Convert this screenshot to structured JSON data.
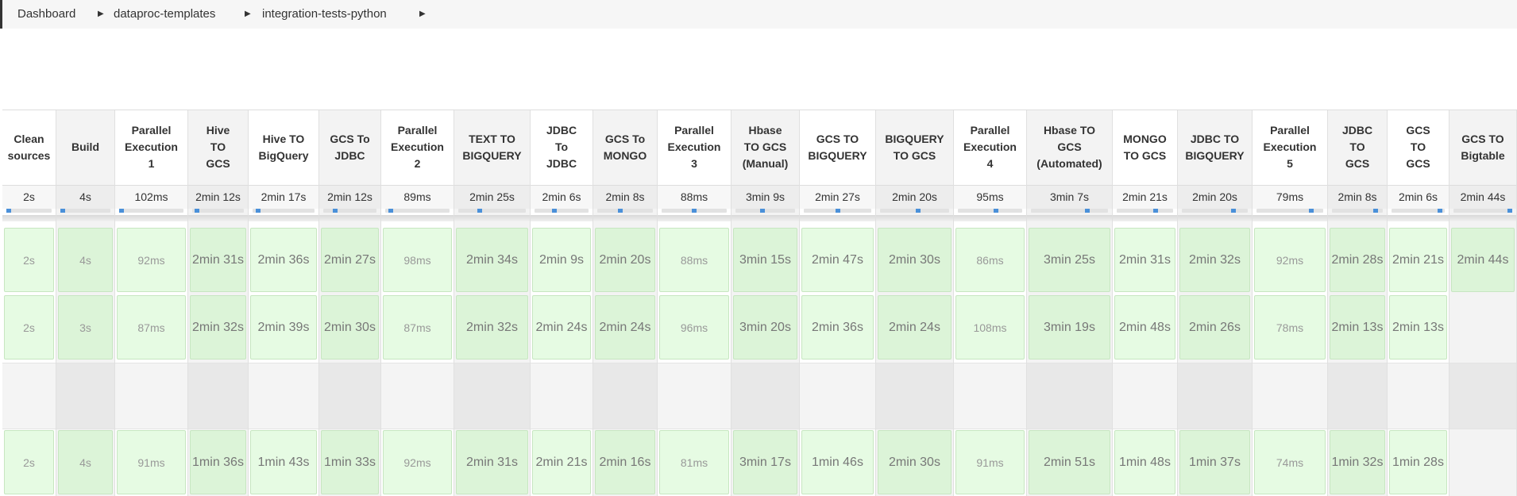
{
  "breadcrumb": {
    "items": [
      "Dashboard",
      "dataproc-templates",
      "integration-tests-python"
    ]
  },
  "stages": [
    {
      "name": "Clean\nsources",
      "avg": "2s",
      "runs": [
        "2s",
        "2s",
        "",
        "2s"
      ]
    },
    {
      "name": "Build",
      "avg": "4s",
      "runs": [
        "4s",
        "3s",
        "",
        "4s"
      ]
    },
    {
      "name": "Parallel\nExecution\n1",
      "avg": "102ms",
      "runs": [
        "92ms",
        "87ms",
        "",
        "91ms"
      ]
    },
    {
      "name": "Hive\nTO\nGCS",
      "avg": "2min 12s",
      "runs": [
        "2min 31s",
        "2min 32s",
        "",
        "1min 36s"
      ]
    },
    {
      "name": "Hive TO\nBigQuery",
      "avg": "2min 17s",
      "runs": [
        "2min 36s",
        "2min 39s",
        "",
        "1min 43s"
      ]
    },
    {
      "name": "GCS To\nJDBC",
      "avg": "2min 12s",
      "runs": [
        "2min 27s",
        "2min 30s",
        "",
        "1min 33s"
      ]
    },
    {
      "name": "Parallel\nExecution\n2",
      "avg": "89ms",
      "runs": [
        "98ms",
        "87ms",
        "",
        "92ms"
      ]
    },
    {
      "name": "TEXT TO\nBIGQUERY",
      "avg": "2min 25s",
      "runs": [
        "2min 34s",
        "2min 32s",
        "",
        "2min 31s"
      ]
    },
    {
      "name": "JDBC\nTo\nJDBC",
      "avg": "2min 6s",
      "runs": [
        "2min 9s",
        "2min 24s",
        "",
        "2min 21s"
      ]
    },
    {
      "name": "GCS To\nMONGO",
      "avg": "2min 8s",
      "runs": [
        "2min 20s",
        "2min 24s",
        "",
        "2min 16s"
      ]
    },
    {
      "name": "Parallel\nExecution\n3",
      "avg": "88ms",
      "runs": [
        "88ms",
        "96ms",
        "",
        "81ms"
      ]
    },
    {
      "name": "Hbase\nTO GCS\n(Manual)",
      "avg": "3min 9s",
      "runs": [
        "3min 15s",
        "3min 20s",
        "",
        "3min 17s"
      ]
    },
    {
      "name": "GCS TO\nBIGQUERY",
      "avg": "2min 27s",
      "runs": [
        "2min 47s",
        "2min 36s",
        "",
        "1min 46s"
      ]
    },
    {
      "name": "BIGQUERY\nTO GCS",
      "avg": "2min 20s",
      "runs": [
        "2min 30s",
        "2min 24s",
        "",
        "2min 30s"
      ]
    },
    {
      "name": "Parallel\nExecution\n4",
      "avg": "95ms",
      "runs": [
        "86ms",
        "108ms",
        "",
        "91ms"
      ]
    },
    {
      "name": "Hbase TO\nGCS\n(Automated)",
      "avg": "3min 7s",
      "runs": [
        "3min 25s",
        "3min 19s",
        "",
        "2min 51s"
      ]
    },
    {
      "name": "MONGO\nTO GCS",
      "avg": "2min 21s",
      "runs": [
        "2min 31s",
        "2min 48s",
        "",
        "1min 48s"
      ]
    },
    {
      "name": "JDBC TO\nBIGQUERY",
      "avg": "2min 20s",
      "runs": [
        "2min 32s",
        "2min 26s",
        "",
        "1min 37s"
      ]
    },
    {
      "name": "Parallel\nExecution\n5",
      "avg": "79ms",
      "runs": [
        "92ms",
        "78ms",
        "",
        "74ms"
      ]
    },
    {
      "name": "JDBC\nTO\nGCS",
      "avg": "2min 8s",
      "runs": [
        "2min 28s",
        "2min 13s",
        "",
        "1min 32s"
      ]
    },
    {
      "name": "GCS\nTO\nGCS",
      "avg": "2min 6s",
      "runs": [
        "2min 21s",
        "2min 13s",
        "",
        "1min 28s"
      ]
    },
    {
      "name": "GCS TO\nBigtable",
      "avg": "2min 44s",
      "runs": [
        "2min 44s",
        "",
        "",
        ""
      ]
    }
  ],
  "icons": {
    "breadcrumb_separator": "caret-right-icon"
  },
  "colors": {
    "success_cell": "#e6fbe3",
    "success_border": "#c7e6c1",
    "progress_tick": "#4a90d9"
  }
}
